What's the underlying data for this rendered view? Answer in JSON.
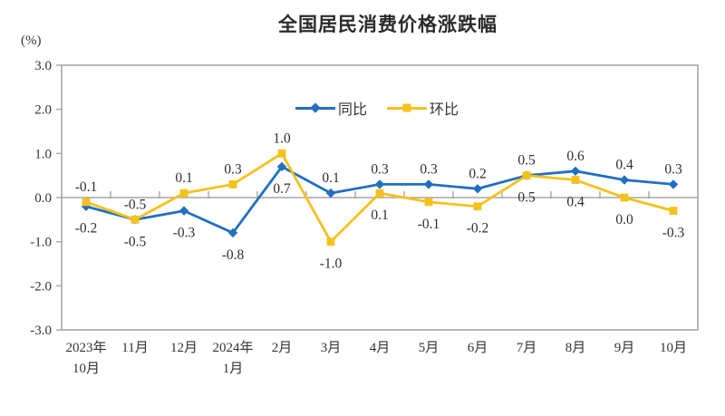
{
  "chart_data": {
    "type": "line",
    "title": "全国居民消费价格涨跌幅",
    "ylabel": "(%)",
    "xlabel": "",
    "ylim": [
      -3.0,
      3.0
    ],
    "ytick_step": 1.0,
    "ytick_labels": [
      "3.0",
      "2.0",
      "1.0",
      "0.0",
      "-1.0",
      "-2.0",
      "-3.0"
    ],
    "grid": false,
    "legend_position": "top-center",
    "categories": [
      [
        "2023年",
        "10月"
      ],
      [
        "11月"
      ],
      [
        "12月"
      ],
      [
        "2024年",
        "1月"
      ],
      [
        "2月"
      ],
      [
        "3月"
      ],
      [
        "4月"
      ],
      [
        "5月"
      ],
      [
        "6月"
      ],
      [
        "7月"
      ],
      [
        "8月"
      ],
      [
        "9月"
      ],
      [
        "10月"
      ]
    ],
    "series": [
      {
        "name": "同比",
        "color": "#2070C0",
        "marker": "diamond",
        "values": [
          -0.2,
          -0.5,
          -0.3,
          -0.8,
          0.7,
          0.1,
          0.3,
          0.3,
          0.2,
          0.5,
          0.6,
          0.4,
          0.3
        ],
        "label_side": [
          "below",
          "below",
          "below",
          "below",
          "below",
          "above",
          "above",
          "above",
          "above",
          "above",
          "above",
          "above",
          "above"
        ]
      },
      {
        "name": "环比",
        "color": "#F6C11C",
        "marker": "square",
        "values": [
          -0.1,
          -0.5,
          0.1,
          0.3,
          1.0,
          -1.0,
          0.1,
          -0.1,
          -0.2,
          0.5,
          0.4,
          0.0,
          -0.3
        ],
        "label_side": [
          "above",
          "above",
          "above",
          "above",
          "above",
          "below",
          "below",
          "below",
          "below",
          "below",
          "below",
          "below",
          "below"
        ]
      }
    ]
  },
  "colors": {
    "axis": "#A6A6A6",
    "text": "#333333",
    "title": "#2B2B2B"
  }
}
